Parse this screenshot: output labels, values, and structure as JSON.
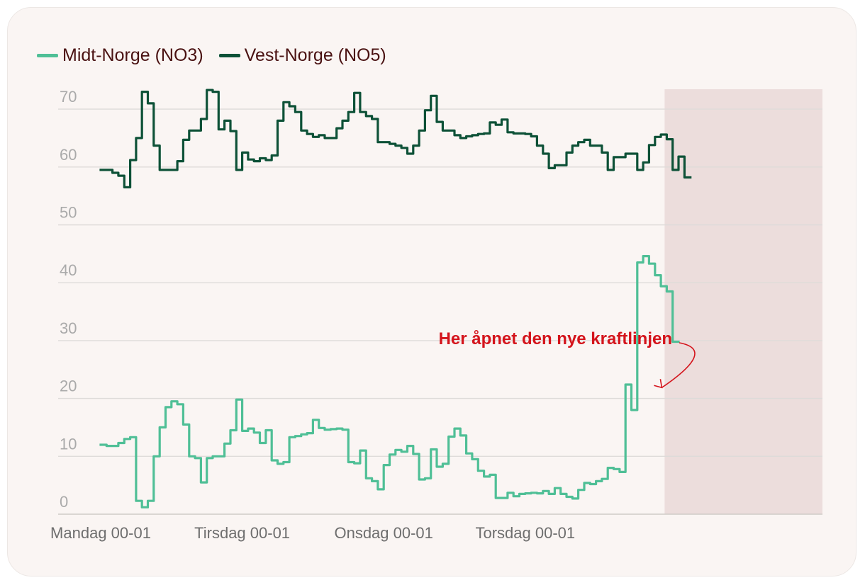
{
  "colors": {
    "midt": "#4fbf96",
    "vest": "#0d5137",
    "highlight": "#ecdddc",
    "annotation": "#d4141c",
    "grid": "#dedbd9",
    "legend_text": "#4a1212"
  },
  "legend": [
    {
      "label": "Midt-Norge (NO3)",
      "series": "midt"
    },
    {
      "label": "Vest-Norge (NO5)",
      "series": "vest"
    }
  ],
  "chart_data": {
    "type": "line",
    "step": true,
    "title": "",
    "xlabel": "",
    "ylabel": "",
    "ylim": [
      0,
      72
    ],
    "yticks": [
      0,
      10,
      20,
      30,
      40,
      50,
      60,
      70
    ],
    "xlim": [
      0,
      120
    ],
    "xticks": [
      {
        "x": 0,
        "label": "Mandag 00-01"
      },
      {
        "x": 24,
        "label": "Tirsdag 00-01"
      },
      {
        "x": 48,
        "label": "Onsdag 00-01"
      },
      {
        "x": 72,
        "label": "Torsdag 00-01"
      }
    ],
    "highlight_range": [
      96,
      120
    ],
    "annotation": {
      "text": "Her åpnet den nye kraftlinjen",
      "x": 96,
      "y": 22
    },
    "series": [
      {
        "name": "Vest-Norge (NO5)",
        "key": "vest",
        "values": [
          59.5,
          59.5,
          59,
          58.5,
          56.5,
          61.2,
          65,
          73,
          71,
          63.7,
          59.5,
          59.5,
          59.5,
          61,
          64.7,
          66.3,
          66.3,
          68.3,
          73.3,
          73,
          66.5,
          68,
          66.2,
          59.5,
          62.5,
          61.3,
          61,
          61.5,
          61.2,
          62,
          68,
          71.2,
          70.5,
          69.5,
          66.3,
          65.7,
          65.2,
          65.5,
          65,
          65,
          66.7,
          68,
          69.5,
          72.8,
          69.5,
          68.8,
          68.3,
          64.3,
          64.3,
          64,
          63.7,
          63.3,
          62.3,
          63.7,
          66.3,
          69.8,
          72.3,
          67.8,
          66.3,
          66.3,
          65.5,
          65,
          65.3,
          65.5,
          65.7,
          65.8,
          67.7,
          67.3,
          68.2,
          66,
          65.8,
          65.8,
          65.7,
          65.3,
          63.7,
          62.3,
          59.8,
          60.3,
          60.3,
          62.5,
          63.7,
          64.3,
          64.7,
          63.7,
          63.7,
          62.5,
          59.5,
          61.7,
          61.7,
          62.3,
          62.3,
          59.5,
          60.8,
          63.8,
          65.2,
          65.6,
          64.8,
          59.5,
          61.8,
          58.2
        ]
      },
      {
        "name": "Midt-Norge (NO3)",
        "key": "midt",
        "values": [
          12,
          11.8,
          11.8,
          12.3,
          13,
          13.3,
          2.3,
          1.2,
          2.3,
          10,
          15,
          18.5,
          19.5,
          19,
          15.5,
          10,
          9.7,
          5.5,
          9.7,
          10,
          10,
          12.2,
          14.5,
          19.8,
          14.4,
          14.8,
          14.1,
          12.3,
          14.5,
          9.3,
          8.7,
          9,
          13.3,
          13.5,
          13.8,
          14,
          16.3,
          14.9,
          14.6,
          14.7,
          14.8,
          14.6,
          9,
          8.8,
          11,
          6.2,
          5.7,
          4.3,
          8.5,
          10.3,
          11.1,
          10.8,
          11.8,
          10.4,
          6,
          6.2,
          11.2,
          8.2,
          8.7,
          13.4,
          14.8,
          13.6,
          10.5,
          9.5,
          7.5,
          6.5,
          6.8,
          2.8,
          2.8,
          3.7,
          3.1,
          3.5,
          3.6,
          3.7,
          3.6,
          4,
          3.5,
          4.5,
          3.5,
          3,
          2.7,
          4.2,
          5.4,
          5.2,
          5.7,
          6.1,
          8,
          7.8,
          7.3,
          22.4,
          18,
          43.5,
          44.6,
          43.3,
          41.3,
          39.4,
          38.5,
          29.8
        ]
      }
    ]
  }
}
